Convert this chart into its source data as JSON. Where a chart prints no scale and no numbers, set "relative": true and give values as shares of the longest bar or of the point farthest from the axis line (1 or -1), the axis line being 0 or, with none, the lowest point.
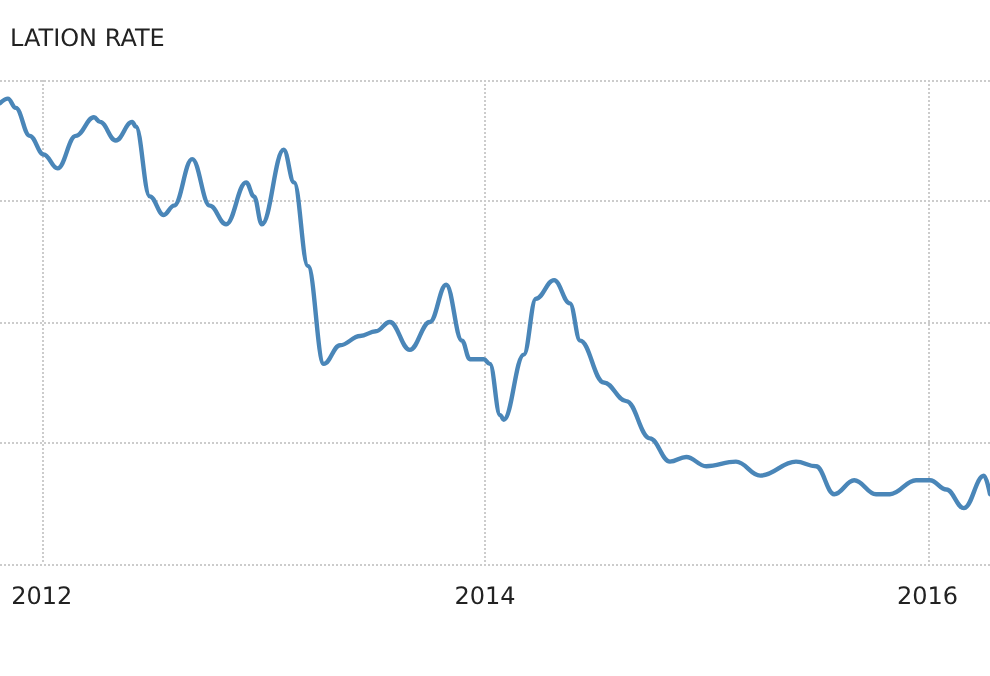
{
  "chart_data": {
    "type": "line",
    "title": "LATION RATE",
    "relative": true,
    "grid": true,
    "line_style": "solid",
    "marker": "none",
    "x": [
      "2011-10-24",
      "2011-11-06",
      "2011-11-19",
      "2011-12-12",
      "2012-01-04",
      "2012-01-27",
      "2012-02-26",
      "2012-03-27",
      "2012-04-06",
      "2012-05-02",
      "2012-05-29",
      "2012-06-04",
      "2012-06-27",
      "2012-07-20",
      "2012-08-06",
      "2012-09-05",
      "2012-10-04",
      "2012-10-31",
      "2012-12-03",
      "2012-12-16",
      "2012-12-29",
      "2013-02-03",
      "2013-02-20",
      "2013-03-15",
      "2013-04-10",
      "2013-05-07",
      "2013-06-09",
      "2013-07-05",
      "2013-07-28",
      "2013-08-30",
      "2013-10-02",
      "2013-10-29",
      "2013-11-24",
      "2013-12-07",
      "2013-12-30",
      "2014-01-09",
      "2014-01-26",
      "2014-02-01",
      "2014-03-06",
      "2014-03-26",
      "2014-04-25",
      "2014-05-21",
      "2014-06-07",
      "2014-07-16",
      "2014-08-22",
      "2014-09-30",
      "2014-11-02",
      "2014-11-29",
      "2015-01-01",
      "2015-02-19",
      "2015-03-31",
      "2015-05-29",
      "2015-07-01",
      "2015-07-31",
      "2015-09-02",
      "2015-10-08",
      "2015-10-31",
      "2015-12-13",
      "2016-01-05",
      "2016-02-01",
      "2016-03-01",
      "2016-04-03",
      "2016-04-13"
    ],
    "series": [
      {
        "color": "#4a86b8",
        "values": [
          0.99,
          1.0,
          0.98,
          0.92,
          0.88,
          0.85,
          0.92,
          0.96,
          0.95,
          0.91,
          0.95,
          0.94,
          0.79,
          0.75,
          0.77,
          0.87,
          0.77,
          0.73,
          0.82,
          0.79,
          0.73,
          0.89,
          0.82,
          0.64,
          0.43,
          0.47,
          0.49,
          0.5,
          0.52,
          0.46,
          0.52,
          0.6,
          0.48,
          0.44,
          0.44,
          0.43,
          0.32,
          0.31,
          0.45,
          0.57,
          0.61,
          0.56,
          0.48,
          0.39,
          0.35,
          0.27,
          0.22,
          0.23,
          0.21,
          0.22,
          0.19,
          0.22,
          0.21,
          0.15,
          0.18,
          0.15,
          0.15,
          0.18,
          0.18,
          0.16,
          0.12,
          0.19,
          0.15
        ]
      }
    ],
    "xlim": [
      "2011-10-24",
      "2016-04-13"
    ],
    "xticks": [
      "2012",
      "2014",
      "2016"
    ]
  }
}
